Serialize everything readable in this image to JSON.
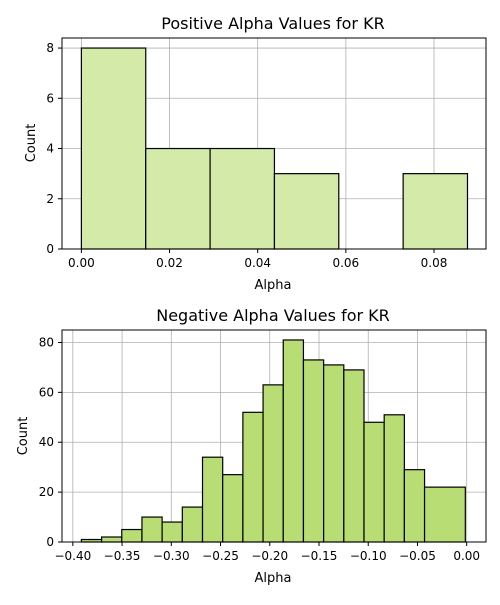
{
  "chart_data": [
    {
      "type": "bar",
      "title": "Positive Alpha Values for KR",
      "xlabel": "Alpha",
      "ylabel": "Count",
      "xlim": [
        -0.0044,
        0.0918
      ],
      "ylim": [
        0,
        8.4
      ],
      "xticks": [
        0.0,
        0.02,
        0.04,
        0.06,
        0.08
      ],
      "xtick_labels": [
        "0.00",
        "0.02",
        "0.04",
        "0.06",
        "0.08"
      ],
      "yticks": [
        0,
        2,
        4,
        6,
        8
      ],
      "ytick_labels": [
        "0",
        "2",
        "4",
        "6",
        "8"
      ],
      "grid": true,
      "bar_color": "#d4eaa8",
      "edge_color": "#000000",
      "bins": [
        {
          "x0": 0.0,
          "x1": 0.0146,
          "value": 8
        },
        {
          "x0": 0.0146,
          "x1": 0.0292,
          "value": 4
        },
        {
          "x0": 0.0292,
          "x1": 0.0438,
          "value": 4
        },
        {
          "x0": 0.0438,
          "x1": 0.0584,
          "value": 3
        },
        {
          "x0": 0.0584,
          "x1": 0.073,
          "value": 0
        },
        {
          "x0": 0.073,
          "x1": 0.0876,
          "value": 3
        }
      ]
    },
    {
      "type": "bar",
      "title": "Negative Alpha Values for KR",
      "xlabel": "Alpha",
      "ylabel": "Count",
      "xlim": [
        -0.411,
        0.0196
      ],
      "ylim": [
        0,
        85
      ],
      "xticks": [
        -0.4,
        -0.35,
        -0.3,
        -0.25,
        -0.2,
        -0.15,
        -0.1,
        -0.05,
        0.0
      ],
      "xtick_labels": [
        "−0.40",
        "−0.35",
        "−0.30",
        "−0.25",
        "−0.20",
        "−0.15",
        "−0.10",
        "−0.05",
        "0.00"
      ],
      "yticks": [
        0,
        20,
        40,
        60,
        80
      ],
      "ytick_labels": [
        "0",
        "20",
        "40",
        "60",
        "80"
      ],
      "grid": true,
      "bar_color": "#b7dd74",
      "edge_color": "#000000",
      "bins": [
        {
          "x0": -0.3913,
          "x1": -0.3708,
          "value": 1
        },
        {
          "x0": -0.3708,
          "x1": -0.3503,
          "value": 2
        },
        {
          "x0": -0.3503,
          "x1": -0.3298,
          "value": 5
        },
        {
          "x0": -0.3298,
          "x1": -0.3093,
          "value": 10
        },
        {
          "x0": -0.3093,
          "x1": -0.2888,
          "value": 8
        },
        {
          "x0": -0.2888,
          "x1": -0.2683,
          "value": 14
        },
        {
          "x0": -0.2683,
          "x1": -0.2478,
          "value": 34
        },
        {
          "x0": -0.2478,
          "x1": -0.2273,
          "value": 27
        },
        {
          "x0": -0.2273,
          "x1": -0.2068,
          "value": 52
        },
        {
          "x0": -0.2068,
          "x1": -0.1863,
          "value": 63
        },
        {
          "x0": -0.1863,
          "x1": -0.1658,
          "value": 81
        },
        {
          "x0": -0.1658,
          "x1": -0.1453,
          "value": 73
        },
        {
          "x0": -0.1453,
          "x1": -0.1248,
          "value": 71
        },
        {
          "x0": -0.1248,
          "x1": -0.1043,
          "value": 69
        },
        {
          "x0": -0.1043,
          "x1": -0.0838,
          "value": 48
        },
        {
          "x0": -0.0838,
          "x1": -0.0633,
          "value": 51
        },
        {
          "x0": -0.0633,
          "x1": -0.0428,
          "value": 29
        },
        {
          "x0": -0.0428,
          "x1": -0.0014,
          "value": 22
        }
      ]
    }
  ]
}
